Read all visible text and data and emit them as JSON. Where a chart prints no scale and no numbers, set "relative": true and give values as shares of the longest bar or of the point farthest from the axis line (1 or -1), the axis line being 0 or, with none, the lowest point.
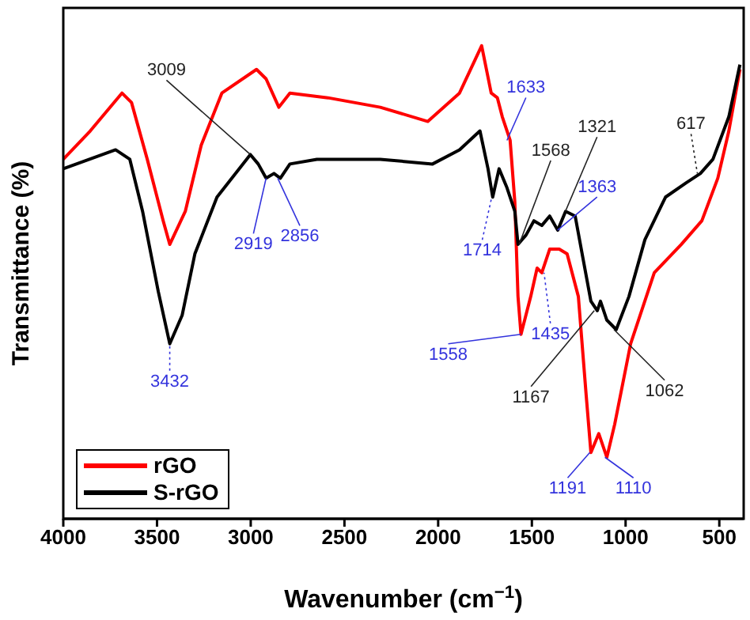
{
  "chart_data": {
    "type": "line",
    "relative": true,
    "xlabel": "Wavenumber (cm$^{−1}$)",
    "ylabel": "Transmittance (%)",
    "xlim": [
      4000,
      370
    ],
    "xticks": [
      4000,
      3500,
      3000,
      2500,
      2000,
      1500,
      1000,
      500
    ],
    "legend": "bottom left",
    "grid": false,
    "marker": "none",
    "line_style": "solid",
    "series": [
      {
        "name": "rGO",
        "color": "#ff0000",
        "x": [
          4000,
          3856,
          3687,
          3636,
          3552,
          3467,
          3432,
          3349,
          3264,
          3154,
          2969,
          2918,
          2850,
          2791,
          2588,
          2309,
          2055,
          1886,
          1768,
          1717,
          1684,
          1658,
          1616,
          1591,
          1574,
          1558,
          1506,
          1472,
          1447,
          1405,
          1354,
          1312,
          1252,
          1210,
          1185,
          1143,
          1100,
          1058,
          973,
          847,
          703,
          593,
          508,
          449,
          390
        ],
        "values": [
          0.76,
          0.82,
          0.9,
          0.88,
          0.76,
          0.63,
          0.58,
          0.65,
          0.79,
          0.9,
          0.95,
          0.93,
          0.87,
          0.9,
          0.89,
          0.87,
          0.84,
          0.9,
          1,
          0.9,
          0.89,
          0.85,
          0.8,
          0.67,
          0.47,
          0.39,
          0.47,
          0.53,
          0.52,
          0.57,
          0.57,
          0.56,
          0.47,
          0.26,
          0.14,
          0.18,
          0.13,
          0.2,
          0.37,
          0.52,
          0.58,
          0.63,
          0.72,
          0.82,
          0.95
        ]
      },
      {
        "name": "S-rGO",
        "color": "#000000",
        "x": [
          4000,
          3721,
          3645,
          3577,
          3493,
          3432,
          3366,
          3298,
          3180,
          3002,
          2960,
          2918,
          2876,
          2842,
          2791,
          2647,
          2309,
          2030,
          1886,
          1777,
          1734,
          1709,
          1675,
          1633,
          1591,
          1574,
          1531,
          1489,
          1447,
          1405,
          1362,
          1320,
          1269,
          1227,
          1185,
          1151,
          1134,
          1100,
          1050,
          982,
          897,
          787,
          678,
          601,
          534,
          449,
          390
        ],
        "values": [
          0.74,
          0.78,
          0.76,
          0.65,
          0.48,
          0.37,
          0.43,
          0.56,
          0.68,
          0.77,
          0.75,
          0.72,
          0.73,
          0.72,
          0.75,
          0.76,
          0.76,
          0.75,
          0.78,
          0.82,
          0.74,
          0.68,
          0.74,
          0.7,
          0.65,
          0.58,
          0.6,
          0.63,
          0.62,
          0.64,
          0.61,
          0.65,
          0.64,
          0.55,
          0.46,
          0.44,
          0.46,
          0.42,
          0.4,
          0.47,
          0.59,
          0.68,
          0.71,
          0.73,
          0.76,
          0.85,
          0.96
        ]
      }
    ],
    "annotations": [
      {
        "text": "3432",
        "x": 3432,
        "y": 0.37
      },
      {
        "text": "3009",
        "x": 3002,
        "y": 0.77
      },
      {
        "text": "2919",
        "x": 2918,
        "y": 0.72
      },
      {
        "text": "2856",
        "x": 2856,
        "y": 0.72
      },
      {
        "text": "1714",
        "x": 1714,
        "y": 0.68
      },
      {
        "text": "1633",
        "x": 1633,
        "y": 0.8
      },
      {
        "text": "1568",
        "x": 1568,
        "y": 0.58
      },
      {
        "text": "1321",
        "x": 1321,
        "y": 0.65
      },
      {
        "text": "1363",
        "x": 1363,
        "y": 0.61
      },
      {
        "text": "1558",
        "x": 1558,
        "y": 0.39
      },
      {
        "text": "1435",
        "x": 1435,
        "y": 0.52
      },
      {
        "text": "1167",
        "x": 1167,
        "y": 0.44
      },
      {
        "text": "1062",
        "x": 1062,
        "y": 0.4
      },
      {
        "text": "1191",
        "x": 1191,
        "y": 0.14
      },
      {
        "text": "1110",
        "x": 1110,
        "y": 0.13
      },
      {
        "text": "617",
        "x": 617,
        "y": 0.73
      }
    ]
  }
}
